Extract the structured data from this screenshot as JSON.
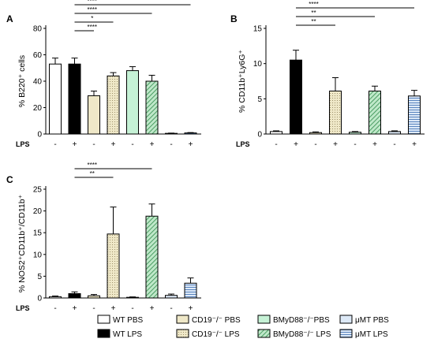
{
  "colors": {
    "wt_pbs": "#ffffff",
    "wt_lps": "#000000",
    "cd19_pbs": "#efe8c8",
    "cd19_lps": "#efe8c8",
    "bmyd_pbs": "#c6f2d6",
    "bmyd_lps": "#5fbf7a",
    "mumt_pbs": "#dde9f7",
    "mumt_lps": "#c7dcf2",
    "stroke": "#000000"
  },
  "treatment": {
    "label": "LPS",
    "signs": [
      "-",
      "+",
      "-",
      "+",
      "-",
      "+",
      "-",
      "+"
    ]
  },
  "legend": {
    "placement": "bottom",
    "entries": [
      {
        "key": "wt_pbs",
        "label": "WT PBS"
      },
      {
        "key": "wt_lps",
        "label": "WT LPS"
      },
      {
        "key": "cd19_pbs",
        "label": "CD19⁻/⁻ PBS"
      },
      {
        "key": "cd19_lps",
        "label": "CD19⁻/⁻ LPS"
      },
      {
        "key": "bmyd_pbs",
        "label": "BMyD88⁻/⁻PBS"
      },
      {
        "key": "bmyd_lps",
        "label": "BMyD88⁻/⁻ LPS"
      },
      {
        "key": "mumt_pbs",
        "label": "μMT PBS"
      },
      {
        "key": "mumt_lps",
        "label": "μMT LPS"
      }
    ]
  },
  "chart_data": [
    {
      "type": "bar",
      "panel": "A",
      "ylabel": "% B220⁺ cells",
      "ylim": [
        0,
        80
      ],
      "yticks": [
        "0",
        "20",
        "40",
        "60",
        "80"
      ],
      "groups": [
        "wt_pbs",
        "wt_lps",
        "cd19_pbs",
        "cd19_lps",
        "bmyd_pbs",
        "bmyd_lps",
        "mumt_pbs",
        "mumt_lps"
      ],
      "values": [
        53,
        53,
        29,
        44,
        48,
        40,
        0.5,
        0.8
      ],
      "errors": [
        4.5,
        4.5,
        3.5,
        2.5,
        3,
        4.5,
        0.2,
        0.3
      ],
      "significance": [
        {
          "from": 1,
          "to": 7,
          "label": "****"
        },
        {
          "from": 1,
          "to": 5,
          "label": "****"
        },
        {
          "from": 1,
          "to": 3,
          "label": "*"
        },
        {
          "from": 1,
          "to": 2,
          "label": "****"
        }
      ]
    },
    {
      "type": "bar",
      "panel": "B",
      "ylabel": "% CD11b⁺Ly6G⁺",
      "ylim": [
        0,
        15
      ],
      "yticks": [
        "0",
        "5",
        "10",
        "15"
      ],
      "groups": [
        "wt_pbs",
        "wt_lps",
        "cd19_pbs",
        "cd19_lps",
        "bmyd_pbs",
        "bmyd_lps",
        "mumt_pbs",
        "mumt_lps"
      ],
      "values": [
        0.35,
        10.5,
        0.2,
        6.1,
        0.25,
        6.1,
        0.35,
        5.4
      ],
      "errors": [
        0.1,
        1.4,
        0.1,
        1.9,
        0.1,
        0.7,
        0.1,
        0.8
      ],
      "significance": [
        {
          "from": 1,
          "to": 7,
          "label": "****"
        },
        {
          "from": 1,
          "to": 5,
          "label": "**"
        },
        {
          "from": 1,
          "to": 3,
          "label": "**"
        }
      ]
    },
    {
      "type": "bar",
      "panel": "C",
      "ylabel": "% NOS2⁺CD11b⁺/CD11b⁺",
      "ylim": [
        0,
        25
      ],
      "yticks": [
        "0",
        "5",
        "10",
        "15",
        "20",
        "25"
      ],
      "groups": [
        "wt_pbs",
        "wt_lps",
        "cd19_pbs",
        "cd19_lps",
        "bmyd_pbs",
        "bmyd_lps",
        "mumt_pbs",
        "mumt_lps"
      ],
      "values": [
        0.3,
        1.0,
        0.5,
        14.7,
        0.15,
        18.8,
        0.6,
        3.4
      ],
      "errors": [
        0.15,
        0.4,
        0.3,
        6.2,
        0.1,
        2.8,
        0.3,
        1.2
      ],
      "significance": [
        {
          "from": 1,
          "to": 5,
          "label": "****"
        },
        {
          "from": 1,
          "to": 3,
          "label": "**"
        }
      ]
    }
  ]
}
